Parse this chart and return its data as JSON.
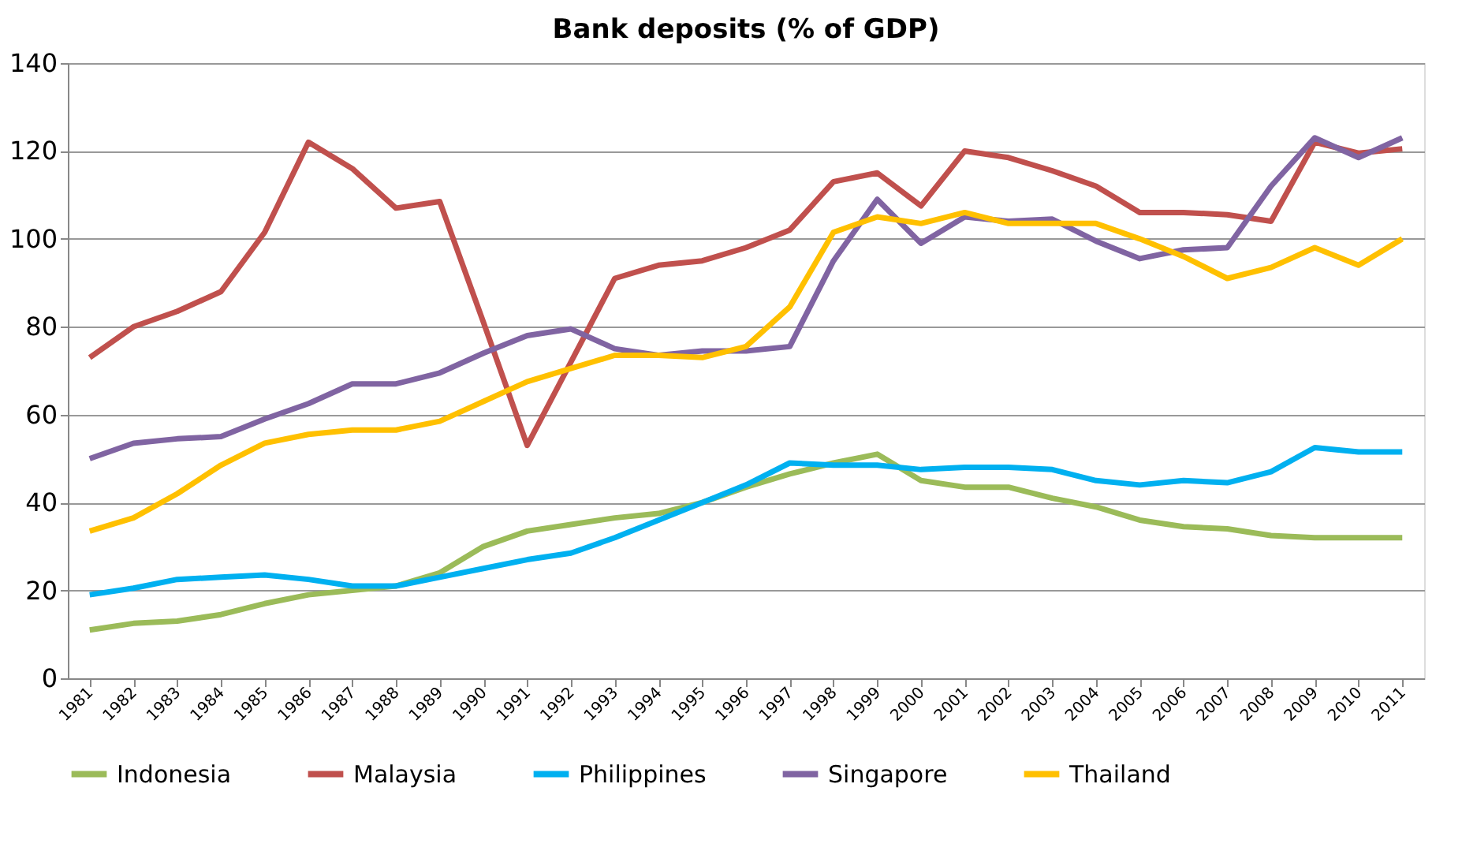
{
  "chart_data": {
    "type": "line",
    "title": "Bank deposits (% of GDP)",
    "categories": [
      "1981",
      "1982",
      "1983",
      "1984",
      "1985",
      "1986",
      "1987",
      "1988",
      "1989",
      "1990",
      "1991",
      "1992",
      "1993",
      "1994",
      "1995",
      "1996",
      "1997",
      "1998",
      "1999",
      "2000",
      "2001",
      "2002",
      "2003",
      "2004",
      "2005",
      "2006",
      "2007",
      "2008",
      "2009",
      "2010",
      "2011"
    ],
    "series": [
      {
        "name": "Indonesia",
        "color": "#9bbb59",
        "values": [
          11,
          12.5,
          13,
          14.5,
          17,
          19,
          20,
          21,
          24,
          30,
          33.5,
          35,
          36.5,
          37.5,
          40,
          43.5,
          46.5,
          49,
          51,
          45,
          43.5,
          43.5,
          41,
          39,
          36,
          34.5,
          34,
          32.5,
          32,
          32,
          32
        ]
      },
      {
        "name": "Malaysia",
        "color": "#c0504d",
        "values": [
          73,
          80,
          83.5,
          88,
          101.5,
          122,
          116,
          107,
          108.5,
          81,
          53,
          72,
          91,
          94,
          95,
          98,
          102,
          113,
          115,
          107.5,
          120,
          118.5,
          115.5,
          112,
          106,
          106,
          105.5,
          104,
          122,
          119.5,
          120.5
        ]
      },
      {
        "name": "Philippines",
        "color": "#00b0f0",
        "values": [
          19,
          20.5,
          22.5,
          23,
          23.5,
          22.5,
          21,
          21,
          23,
          25,
          27,
          28.5,
          32,
          36,
          40,
          44,
          49,
          48.5,
          48.5,
          47.5,
          48,
          48,
          47.5,
          45,
          44,
          45,
          44.5,
          47,
          52.5,
          51.5,
          51.5
        ]
      },
      {
        "name": "Singapore",
        "color": "#8064a2",
        "values": [
          50,
          53.5,
          54.5,
          55,
          59,
          62.5,
          67,
          67,
          69.5,
          74,
          78,
          79.5,
          75,
          73.5,
          74.5,
          74.5,
          75.5,
          95,
          109,
          99,
          105,
          104,
          104.5,
          99.5,
          95.5,
          97.5,
          98,
          112,
          123,
          118.5,
          123
        ]
      },
      {
        "name": "Thailand",
        "color": "#ffc000",
        "values": [
          33.5,
          36.5,
          42,
          48.5,
          53.5,
          55.5,
          56.5,
          56.5,
          58.5,
          63,
          67.5,
          70.5,
          73.5,
          73.5,
          73,
          75.5,
          84.5,
          101.5,
          105,
          103.5,
          106,
          103.5,
          103.5,
          103.5,
          100,
          96,
          91,
          93.5,
          98,
          94,
          100
        ]
      }
    ],
    "ylim": [
      0,
      140
    ],
    "yticks": [
      0,
      20,
      40,
      60,
      80,
      100,
      120,
      140
    ],
    "grid": "y",
    "legend": "bottom",
    "marker": "none",
    "line_style": "solid"
  }
}
